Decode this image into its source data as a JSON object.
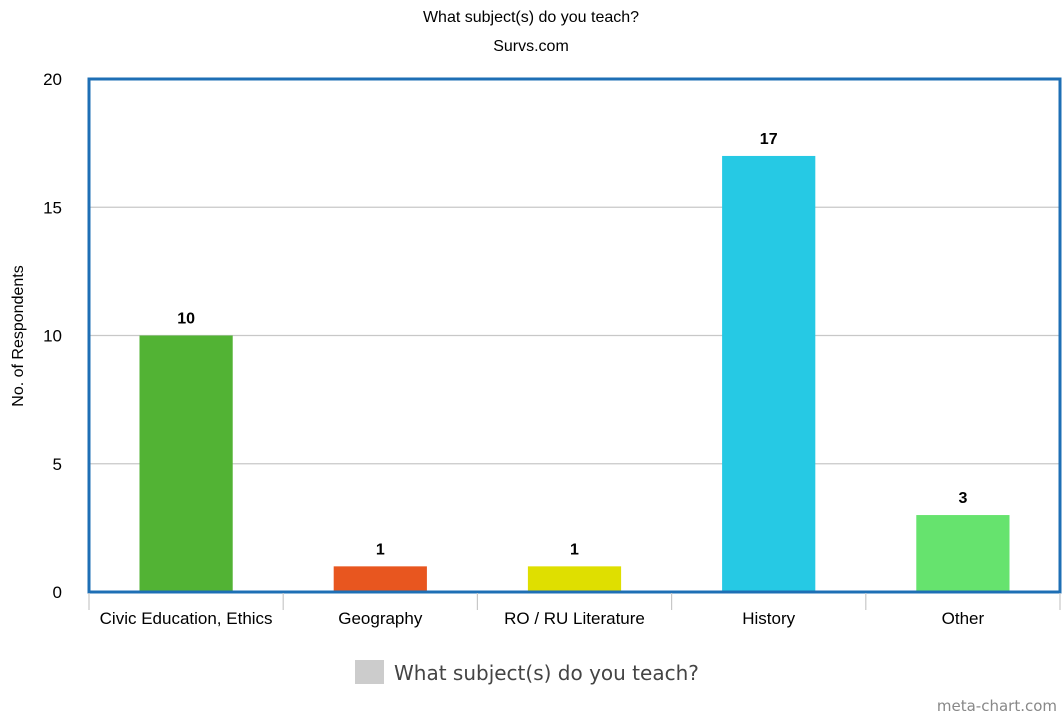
{
  "chart_data": {
    "type": "bar",
    "title": "What subject(s) do you teach?",
    "subtitle": "Survs.com",
    "xlabel": "",
    "ylabel": "No. of Respondents",
    "categories": [
      "Civic Education, Ethics",
      "Geography",
      "RO / RU Literature",
      "History",
      "Other"
    ],
    "series": [
      {
        "name": "What subject(s) do you teach?",
        "values": [
          10,
          1,
          1,
          17,
          3
        ],
        "colors": [
          "#52b334",
          "#e8561f",
          "#dfdf00",
          "#26c9e4",
          "#66e36e"
        ]
      }
    ],
    "ylim": [
      0,
      20
    ],
    "yticks": [
      0,
      5,
      10,
      15,
      20
    ],
    "grid": true,
    "legend": {
      "position": "bottom",
      "label": "What subject(s) do you teach?",
      "swatch_color": "#cccccc"
    },
    "axis_color": "#1e6fb5",
    "grid_color": "#c8c8c8"
  },
  "credit": "meta-chart.com"
}
